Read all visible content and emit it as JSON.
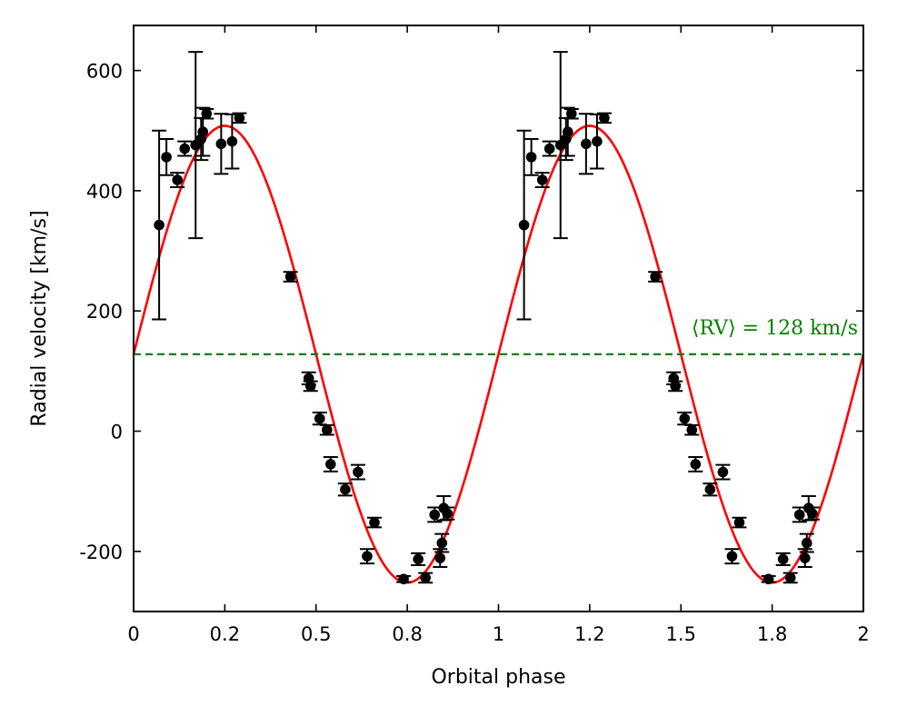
{
  "chart_data": {
    "type": "scatter",
    "xlabel": "Orbital phase",
    "ylabel": "Radial velocity [km/s]",
    "xlim": [
      0,
      2
    ],
    "ylim": [
      -300,
      675
    ],
    "x_ticks": [
      0,
      0.25,
      0.5,
      0.75,
      1,
      1.25,
      1.5,
      1.75,
      2
    ],
    "x_tick_labels": [
      "0",
      "0.2",
      "0.5",
      "0.8",
      "1",
      "1.2",
      "1.5",
      "1.8",
      "2"
    ],
    "y_ticks": [
      -200,
      0,
      200,
      400,
      600
    ],
    "y_tick_labels": [
      "-200",
      "0",
      "200",
      "400",
      "600"
    ],
    "mean_rv": {
      "value": 128,
      "label": "⟨RV⟩ = 128 km/s",
      "color": "#008000"
    },
    "model": {
      "name": "sinusoidal fit",
      "color": "#ff0000",
      "gamma": 128,
      "amplitude": 380,
      "t0": 0.0,
      "period_phase": 1.0
    },
    "points_color": "#000000",
    "points": [
      {
        "x": 0.07,
        "y": 343,
        "err": 157
      },
      {
        "x": 0.09,
        "y": 456,
        "err": 30
      },
      {
        "x": 0.12,
        "y": 418,
        "err": 12
      },
      {
        "x": 0.14,
        "y": 470,
        "err": 12
      },
      {
        "x": 0.17,
        "y": 476,
        "err": 155
      },
      {
        "x": 0.185,
        "y": 486,
        "err": 35
      },
      {
        "x": 0.19,
        "y": 498,
        "err": 40
      },
      {
        "x": 0.2,
        "y": 528,
        "err": 8
      },
      {
        "x": 0.24,
        "y": 478,
        "err": 50
      },
      {
        "x": 0.27,
        "y": 482,
        "err": 45
      },
      {
        "x": 0.29,
        "y": 521,
        "err": 8
      },
      {
        "x": 0.43,
        "y": 257,
        "err": 8
      },
      {
        "x": 0.48,
        "y": 88,
        "err": 10
      },
      {
        "x": 0.485,
        "y": 75,
        "err": 8
      },
      {
        "x": 0.51,
        "y": 21,
        "err": 10
      },
      {
        "x": 0.53,
        "y": 2,
        "err": 8
      },
      {
        "x": 0.54,
        "y": -55,
        "err": 12
      },
      {
        "x": 0.58,
        "y": -97,
        "err": 10
      },
      {
        "x": 0.615,
        "y": -68,
        "err": 12
      },
      {
        "x": 0.64,
        "y": -208,
        "err": 12
      },
      {
        "x": 0.66,
        "y": -152,
        "err": 8
      },
      {
        "x": 0.74,
        "y": -246,
        "err": 5
      },
      {
        "x": 0.78,
        "y": -213,
        "err": 10
      },
      {
        "x": 0.8,
        "y": -244,
        "err": 8
      },
      {
        "x": 0.825,
        "y": -139,
        "err": 12
      },
      {
        "x": 0.84,
        "y": -211,
        "err": 15
      },
      {
        "x": 0.845,
        "y": -186,
        "err": 15
      },
      {
        "x": 0.85,
        "y": -128,
        "err": 20
      },
      {
        "x": 0.86,
        "y": -137,
        "err": 10
      },
      {
        "x": 1.07,
        "y": 343,
        "err": 157
      },
      {
        "x": 1.09,
        "y": 456,
        "err": 30
      },
      {
        "x": 1.12,
        "y": 418,
        "err": 12
      },
      {
        "x": 1.14,
        "y": 470,
        "err": 12
      },
      {
        "x": 1.17,
        "y": 476,
        "err": 155
      },
      {
        "x": 1.185,
        "y": 486,
        "err": 35
      },
      {
        "x": 1.19,
        "y": 498,
        "err": 40
      },
      {
        "x": 1.2,
        "y": 528,
        "err": 8
      },
      {
        "x": 1.24,
        "y": 478,
        "err": 50
      },
      {
        "x": 1.27,
        "y": 482,
        "err": 45
      },
      {
        "x": 1.29,
        "y": 521,
        "err": 8
      },
      {
        "x": 1.43,
        "y": 257,
        "err": 8
      },
      {
        "x": 1.48,
        "y": 88,
        "err": 10
      },
      {
        "x": 1.485,
        "y": 75,
        "err": 8
      },
      {
        "x": 1.51,
        "y": 21,
        "err": 10
      },
      {
        "x": 1.53,
        "y": 2,
        "err": 8
      },
      {
        "x": 1.54,
        "y": -55,
        "err": 12
      },
      {
        "x": 1.58,
        "y": -97,
        "err": 10
      },
      {
        "x": 1.615,
        "y": -68,
        "err": 12
      },
      {
        "x": 1.64,
        "y": -208,
        "err": 12
      },
      {
        "x": 1.66,
        "y": -152,
        "err": 8
      },
      {
        "x": 1.74,
        "y": -246,
        "err": 5
      },
      {
        "x": 1.78,
        "y": -213,
        "err": 10
      },
      {
        "x": 1.8,
        "y": -244,
        "err": 8
      },
      {
        "x": 1.825,
        "y": -139,
        "err": 12
      },
      {
        "x": 1.84,
        "y": -211,
        "err": 15
      },
      {
        "x": 1.845,
        "y": -186,
        "err": 15
      },
      {
        "x": 1.85,
        "y": -128,
        "err": 20
      },
      {
        "x": 1.86,
        "y": -137,
        "err": 10
      }
    ]
  }
}
